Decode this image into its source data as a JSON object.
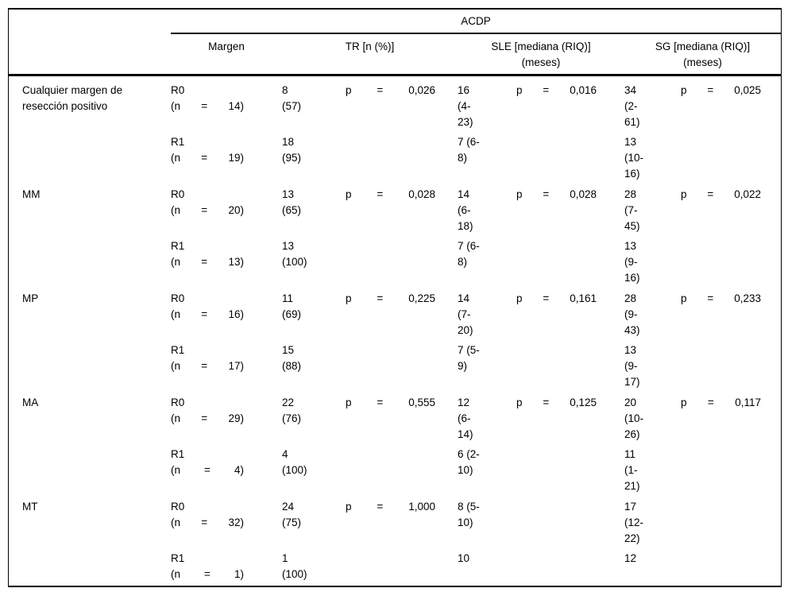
{
  "t": {
    "title": "ACDP",
    "headers": {
      "margen": "Margen",
      "tr": "TR [n (%)]",
      "sle": "SLE [mediana (RIQ)]",
      "sle_unit": "(meses)",
      "sg": "SG [mediana (RIQ)]",
      "sg_unit": "(meses)"
    },
    "groups": [
      {
        "label": "Cualquier margen de resección positivo",
        "rows": [
          {
            "margin": "R0",
            "n_open": "(n",
            "n_eq": "=",
            "n_val": "14)",
            "tr": "8\n(57)",
            "tr_p": {
              "p": "p",
              "eq": "=",
              "v": "0,026"
            },
            "sle": "16\n(4-\n23)",
            "sle_p": {
              "p": "p",
              "eq": "=",
              "v": "0,016"
            },
            "sg": "34\n(2-\n61)",
            "sg_p": {
              "p": "p",
              "eq": "=",
              "v": "0,025"
            }
          },
          {
            "margin": "R1",
            "n_open": "(n",
            "n_eq": "=",
            "n_val": "19)",
            "tr": "18\n(95)",
            "sle": "7 (6-\n8)",
            "sg": "13\n(10-\n16)"
          }
        ]
      },
      {
        "label": "MM",
        "rows": [
          {
            "margin": "R0",
            "n_open": "(n",
            "n_eq": "=",
            "n_val": "20)",
            "tr": "13\n(65)",
            "tr_p": {
              "p": "p",
              "eq": "=",
              "v": "0,028"
            },
            "sle": "14\n(6-\n18)",
            "sle_p": {
              "p": "p",
              "eq": "=",
              "v": "0,028"
            },
            "sg": "28\n(7-\n45)",
            "sg_p": {
              "p": "p",
              "eq": "=",
              "v": "0,022"
            }
          },
          {
            "margin": "R1",
            "n_open": "(n",
            "n_eq": "=",
            "n_val": "13)",
            "tr": "13\n(100)",
            "sle": "7 (6-\n8)",
            "sg": "13\n(9-\n16)"
          }
        ]
      },
      {
        "label": "MP",
        "rows": [
          {
            "margin": "R0",
            "n_open": "(n",
            "n_eq": "=",
            "n_val": "16)",
            "tr": "11\n(69)",
            "tr_p": {
              "p": "p",
              "eq": "=",
              "v": "0,225"
            },
            "sle": "14\n(7-\n20)",
            "sle_p": {
              "p": "p",
              "eq": "=",
              "v": "0,161"
            },
            "sg": "28\n(9-\n43)",
            "sg_p": {
              "p": "p",
              "eq": "=",
              "v": "0,233"
            }
          },
          {
            "margin": "R1",
            "n_open": "(n",
            "n_eq": "=",
            "n_val": "17)",
            "tr": "15\n(88)",
            "sle": "7 (5-\n9)",
            "sg": "13\n(9-\n17)"
          }
        ]
      },
      {
        "label": "MA",
        "rows": [
          {
            "margin": "R0",
            "n_open": "(n",
            "n_eq": "=",
            "n_val": "29)",
            "tr": "22\n(76)",
            "tr_p": {
              "p": "p",
              "eq": "=",
              "v": "0,555"
            },
            "sle": "12\n(6-\n14)",
            "sle_p": {
              "p": "p",
              "eq": "=",
              "v": "0,125"
            },
            "sg": "20\n(10-\n26)",
            "sg_p": {
              "p": "p",
              "eq": "=",
              "v": "0,117"
            }
          },
          {
            "margin": "R1",
            "n_open": "(n",
            "n_eq": "=",
            "n_val": "4)",
            "tr": "4\n(100)",
            "sle": "6 (2-\n10)",
            "sg": "11\n(1-\n21)"
          }
        ]
      },
      {
        "label": "MT",
        "rows": [
          {
            "margin": "R0",
            "n_open": "(n",
            "n_eq": "=",
            "n_val": "32)",
            "tr": "24\n(75)",
            "tr_p": {
              "p": "p",
              "eq": "=",
              "v": "1,000"
            },
            "sle": "8 (5-\n10)",
            "sg": "17\n(12-\n22)"
          },
          {
            "margin": "R1",
            "n_open": "(n",
            "n_eq": "=",
            "n_val": "1)",
            "tr": "1\n(100)",
            "sle": "10",
            "sg": "12"
          }
        ]
      }
    ]
  }
}
